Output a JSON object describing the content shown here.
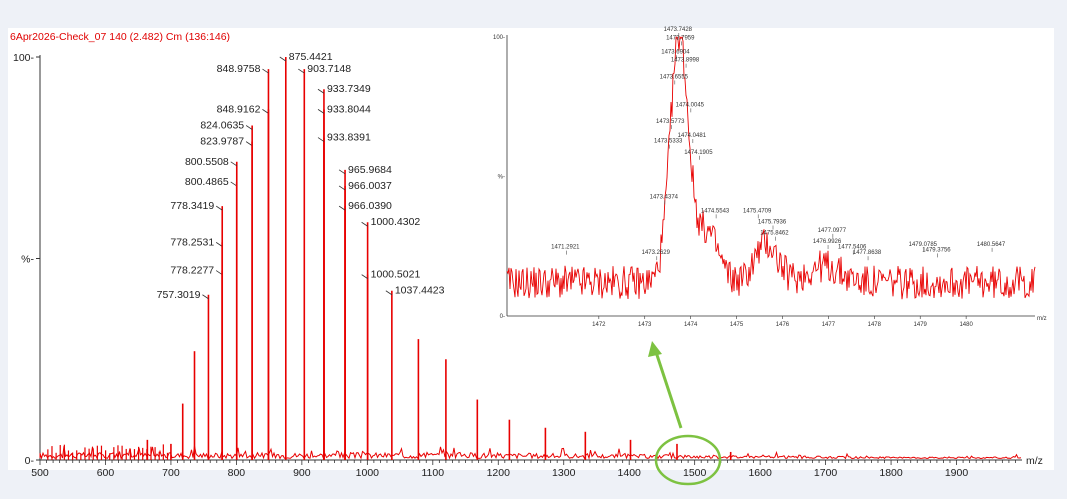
{
  "chart_data": [
    {
      "type": "line",
      "title": "6Apr2026-Check_07 140 (2.482) Cm (136:146)",
      "xlabel": "m/z",
      "ylabel": "%",
      "xlim": [
        500,
        2000
      ],
      "ylim": [
        0,
        100
      ],
      "x_ticks": [
        "500",
        "600",
        "700",
        "800",
        "900",
        "1000",
        "1100",
        "1200",
        "1300",
        "1400",
        "1500",
        "1600",
        "1700",
        "1800",
        "1900"
      ],
      "y_ticks": [
        "0-",
        "%-",
        "100-"
      ],
      "peaks": [
        {
          "x": 664,
          "y": 5
        },
        {
          "x": 700,
          "y": 4
        },
        {
          "x": 718,
          "y": 14
        },
        {
          "x": 736,
          "y": 27
        },
        {
          "x": 757.3019,
          "y": 41,
          "label": "757.3019"
        },
        {
          "x": 778.2277,
          "y": 47,
          "label": "778.2277"
        },
        {
          "x": 778.2531,
          "y": 54,
          "label": "778.2531"
        },
        {
          "x": 778.3419,
          "y": 63,
          "label": "778.3419"
        },
        {
          "x": 800.4865,
          "y": 69,
          "label": "800.4865"
        },
        {
          "x": 800.5508,
          "y": 74,
          "label": "800.5508"
        },
        {
          "x": 823.9787,
          "y": 79,
          "label": "823.9787"
        },
        {
          "x": 824.0635,
          "y": 83,
          "label": "824.0635"
        },
        {
          "x": 848.9162,
          "y": 87,
          "label": "848.9162"
        },
        {
          "x": 848.9758,
          "y": 97,
          "label": "848.9758"
        },
        {
          "x": 875.4421,
          "y": 100,
          "label": "875.4421"
        },
        {
          "x": 903.7148,
          "y": 97,
          "label": "903.7148"
        },
        {
          "x": 933.7349,
          "y": 92,
          "label": "933.7349"
        },
        {
          "x": 933.8044,
          "y": 87,
          "label": "933.8044"
        },
        {
          "x": 933.8391,
          "y": 80,
          "label": "933.8391"
        },
        {
          "x": 965.9684,
          "y": 72,
          "label": "965.9684"
        },
        {
          "x": 966.0037,
          "y": 68,
          "label": "966.0037"
        },
        {
          "x": 966.039,
          "y": 63,
          "label": "966.0390"
        },
        {
          "x": 1000.4302,
          "y": 59,
          "label": "1000.4302"
        },
        {
          "x": 1000.5021,
          "y": 46,
          "label": "1000.5021"
        },
        {
          "x": 1037.4423,
          "y": 42,
          "label": "1037.4423"
        },
        {
          "x": 1078,
          "y": 30
        },
        {
          "x": 1120,
          "y": 25
        },
        {
          "x": 1168,
          "y": 15
        },
        {
          "x": 1217,
          "y": 10
        },
        {
          "x": 1272,
          "y": 8
        },
        {
          "x": 1333,
          "y": 7
        },
        {
          "x": 1402,
          "y": 5
        },
        {
          "x": 1473,
          "y": 4
        },
        {
          "x": 1555,
          "y": 2
        }
      ],
      "color": "#e80000"
    },
    {
      "type": "line",
      "title": "",
      "xlabel": "m/z",
      "ylabel": "%",
      "xlim": [
        1470,
        1481.5
      ],
      "ylim": [
        0,
        100
      ],
      "x_ticks": [
        "1472",
        "1473",
        "1474",
        "1475",
        "1476",
        "1477",
        "1478",
        "1479",
        "1480"
      ],
      "y_ticks": [
        "0-",
        "%-",
        "100-"
      ],
      "labels": [
        {
          "x": 1471.2921,
          "y": 22,
          "text": "1471.2921"
        },
        {
          "x": 1473.2629,
          "y": 20,
          "text": "1473.2629"
        },
        {
          "x": 1473.4374,
          "y": 40,
          "text": "1473.4374"
        },
        {
          "x": 1473.5333,
          "y": 60,
          "text": "1473.5333"
        },
        {
          "x": 1473.5773,
          "y": 67,
          "text": "1473.5773"
        },
        {
          "x": 1473.6555,
          "y": 83,
          "text": "1473.6555"
        },
        {
          "x": 1473.6904,
          "y": 92,
          "text": "1473.6904"
        },
        {
          "x": 1473.7428,
          "y": 100,
          "text": "1473.7428"
        },
        {
          "x": 1473.7959,
          "y": 97,
          "text": "1473.7959"
        },
        {
          "x": 1473.8998,
          "y": 89,
          "text": "1473.8998"
        },
        {
          "x": 1474.0045,
          "y": 73,
          "text": "1474.0045"
        },
        {
          "x": 1474.0481,
          "y": 62,
          "text": "1474.0481"
        },
        {
          "x": 1474.1905,
          "y": 56,
          "text": "1474.1905"
        },
        {
          "x": 1474.5543,
          "y": 35,
          "text": "1474.5543"
        },
        {
          "x": 1475.4709,
          "y": 35,
          "text": "1475.4709"
        },
        {
          "x": 1475.7936,
          "y": 31,
          "text": "1475.7936"
        },
        {
          "x": 1475.8462,
          "y": 27,
          "text": "1475.8462"
        },
        {
          "x": 1476.9926,
          "y": 24,
          "text": "1476.9926"
        },
        {
          "x": 1477.0977,
          "y": 28,
          "text": "1477.0977"
        },
        {
          "x": 1477.5406,
          "y": 22,
          "text": "1477.5406"
        },
        {
          "x": 1477.8638,
          "y": 20,
          "text": "1477.8638"
        },
        {
          "x": 1479.0785,
          "y": 23,
          "text": "1479.0785"
        },
        {
          "x": 1479.3756,
          "y": 21,
          "text": "1479.3756"
        },
        {
          "x": 1480.5647,
          "y": 23,
          "text": "1480.5647"
        }
      ],
      "color": "#e80000"
    }
  ],
  "annotation": {
    "arrow_color": "#7dc241",
    "circle_color": "#7dc241"
  }
}
